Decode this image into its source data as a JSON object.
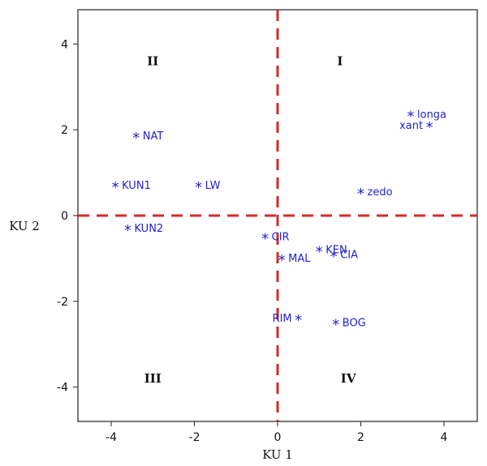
{
  "chart_data": {
    "type": "scatter",
    "xlabel": "KU 1",
    "ylabel": "KU 2",
    "xlim": [
      -4.8,
      4.8
    ],
    "ylim": [
      -4.8,
      4.8
    ],
    "x_ticks": [
      -4,
      -2,
      0,
      2,
      4
    ],
    "y_ticks": [
      -4,
      -2,
      0,
      2,
      4
    ],
    "x_tick_labels": [
      "-4",
      "-2",
      "0",
      "2",
      "4"
    ],
    "y_tick_labels": [
      "-4",
      "-2",
      "0",
      "2",
      "4"
    ],
    "grid": false,
    "reference_lines": {
      "x": 0,
      "y": 0,
      "color": "#d42a2a",
      "style": "dashed"
    },
    "marker": "*",
    "point_color": "#2222cc",
    "quadrants": [
      {
        "label": "I",
        "x": 1.5,
        "y": 3.6
      },
      {
        "label": "II",
        "x": -3.0,
        "y": 3.6
      },
      {
        "label": "III",
        "x": -3.0,
        "y": -3.8
      },
      {
        "label": "IV",
        "x": 1.7,
        "y": -3.8
      }
    ],
    "points": [
      {
        "label": "longa",
        "x": 3.2,
        "y": 2.35,
        "label_side": "right"
      },
      {
        "label": "xant",
        "x": 3.65,
        "y": 2.1,
        "label_side": "left"
      },
      {
        "label": "NAT",
        "x": -3.4,
        "y": 1.85,
        "label_side": "right"
      },
      {
        "label": "KUN1",
        "x": -3.9,
        "y": 0.7,
        "label_side": "right"
      },
      {
        "label": "LW",
        "x": -1.9,
        "y": 0.7,
        "label_side": "right"
      },
      {
        "label": "zedo",
        "x": 2.0,
        "y": 0.55,
        "label_side": "right"
      },
      {
        "label": "KUN2",
        "x": -3.6,
        "y": -0.3,
        "label_side": "right"
      },
      {
        "label": "CIR",
        "x": -0.3,
        "y": -0.5,
        "label_side": "right"
      },
      {
        "label": "KEN",
        "x": 1.0,
        "y": -0.8,
        "label_side": "right"
      },
      {
        "label": "MAL",
        "x": 0.1,
        "y": -1.0,
        "label_side": "right"
      },
      {
        "label": "CIA",
        "x": 1.35,
        "y": -0.92,
        "label_side": "right"
      },
      {
        "label": "RIM",
        "x": 0.5,
        "y": -2.4,
        "label_side": "left"
      },
      {
        "label": "BOG",
        "x": 1.4,
        "y": -2.5,
        "label_side": "right"
      }
    ]
  }
}
